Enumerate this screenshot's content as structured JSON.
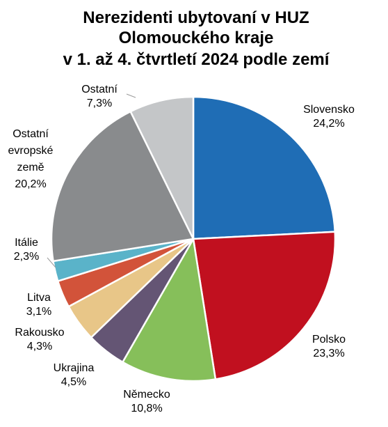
{
  "chart_data": {
    "type": "pie",
    "title": [
      "Nerezidenti ubytovaní v HUZ",
      "Olomouckého kraje",
      "v 1. až 4. čtvrtletí 2024 podle zemí"
    ],
    "slices": [
      {
        "label": [
          "Slovensko"
        ],
        "value_text": "24,2%",
        "value": 24.2,
        "color": "#1f6db5"
      },
      {
        "label": [
          "Polsko"
        ],
        "value_text": "23,3%",
        "value": 23.3,
        "color": "#c1101f"
      },
      {
        "label": [
          "Německo"
        ],
        "value_text": "10,8%",
        "value": 10.8,
        "color": "#86bf5a"
      },
      {
        "label": [
          "Ukrajina"
        ],
        "value_text": "4,5%",
        "value": 4.5,
        "color": "#645574"
      },
      {
        "label": [
          "Rakousko"
        ],
        "value_text": "4,3%",
        "value": 4.3,
        "color": "#e8c688"
      },
      {
        "label": [
          "Litva"
        ],
        "value_text": "3,1%",
        "value": 3.1,
        "color": "#d2533a"
      },
      {
        "label": [
          "Itálie"
        ],
        "value_text": "2,3%",
        "value": 2.3,
        "color": "#5ab3c9"
      },
      {
        "label": [
          "Ostatní",
          "evropské",
          "země"
        ],
        "value_text": "20,2%",
        "value": 20.2,
        "color": "#898b8d"
      },
      {
        "label": [
          "Ostatní"
        ],
        "value_text": "7,3%",
        "value": 7.3,
        "color": "#c4c6c8"
      }
    ]
  }
}
